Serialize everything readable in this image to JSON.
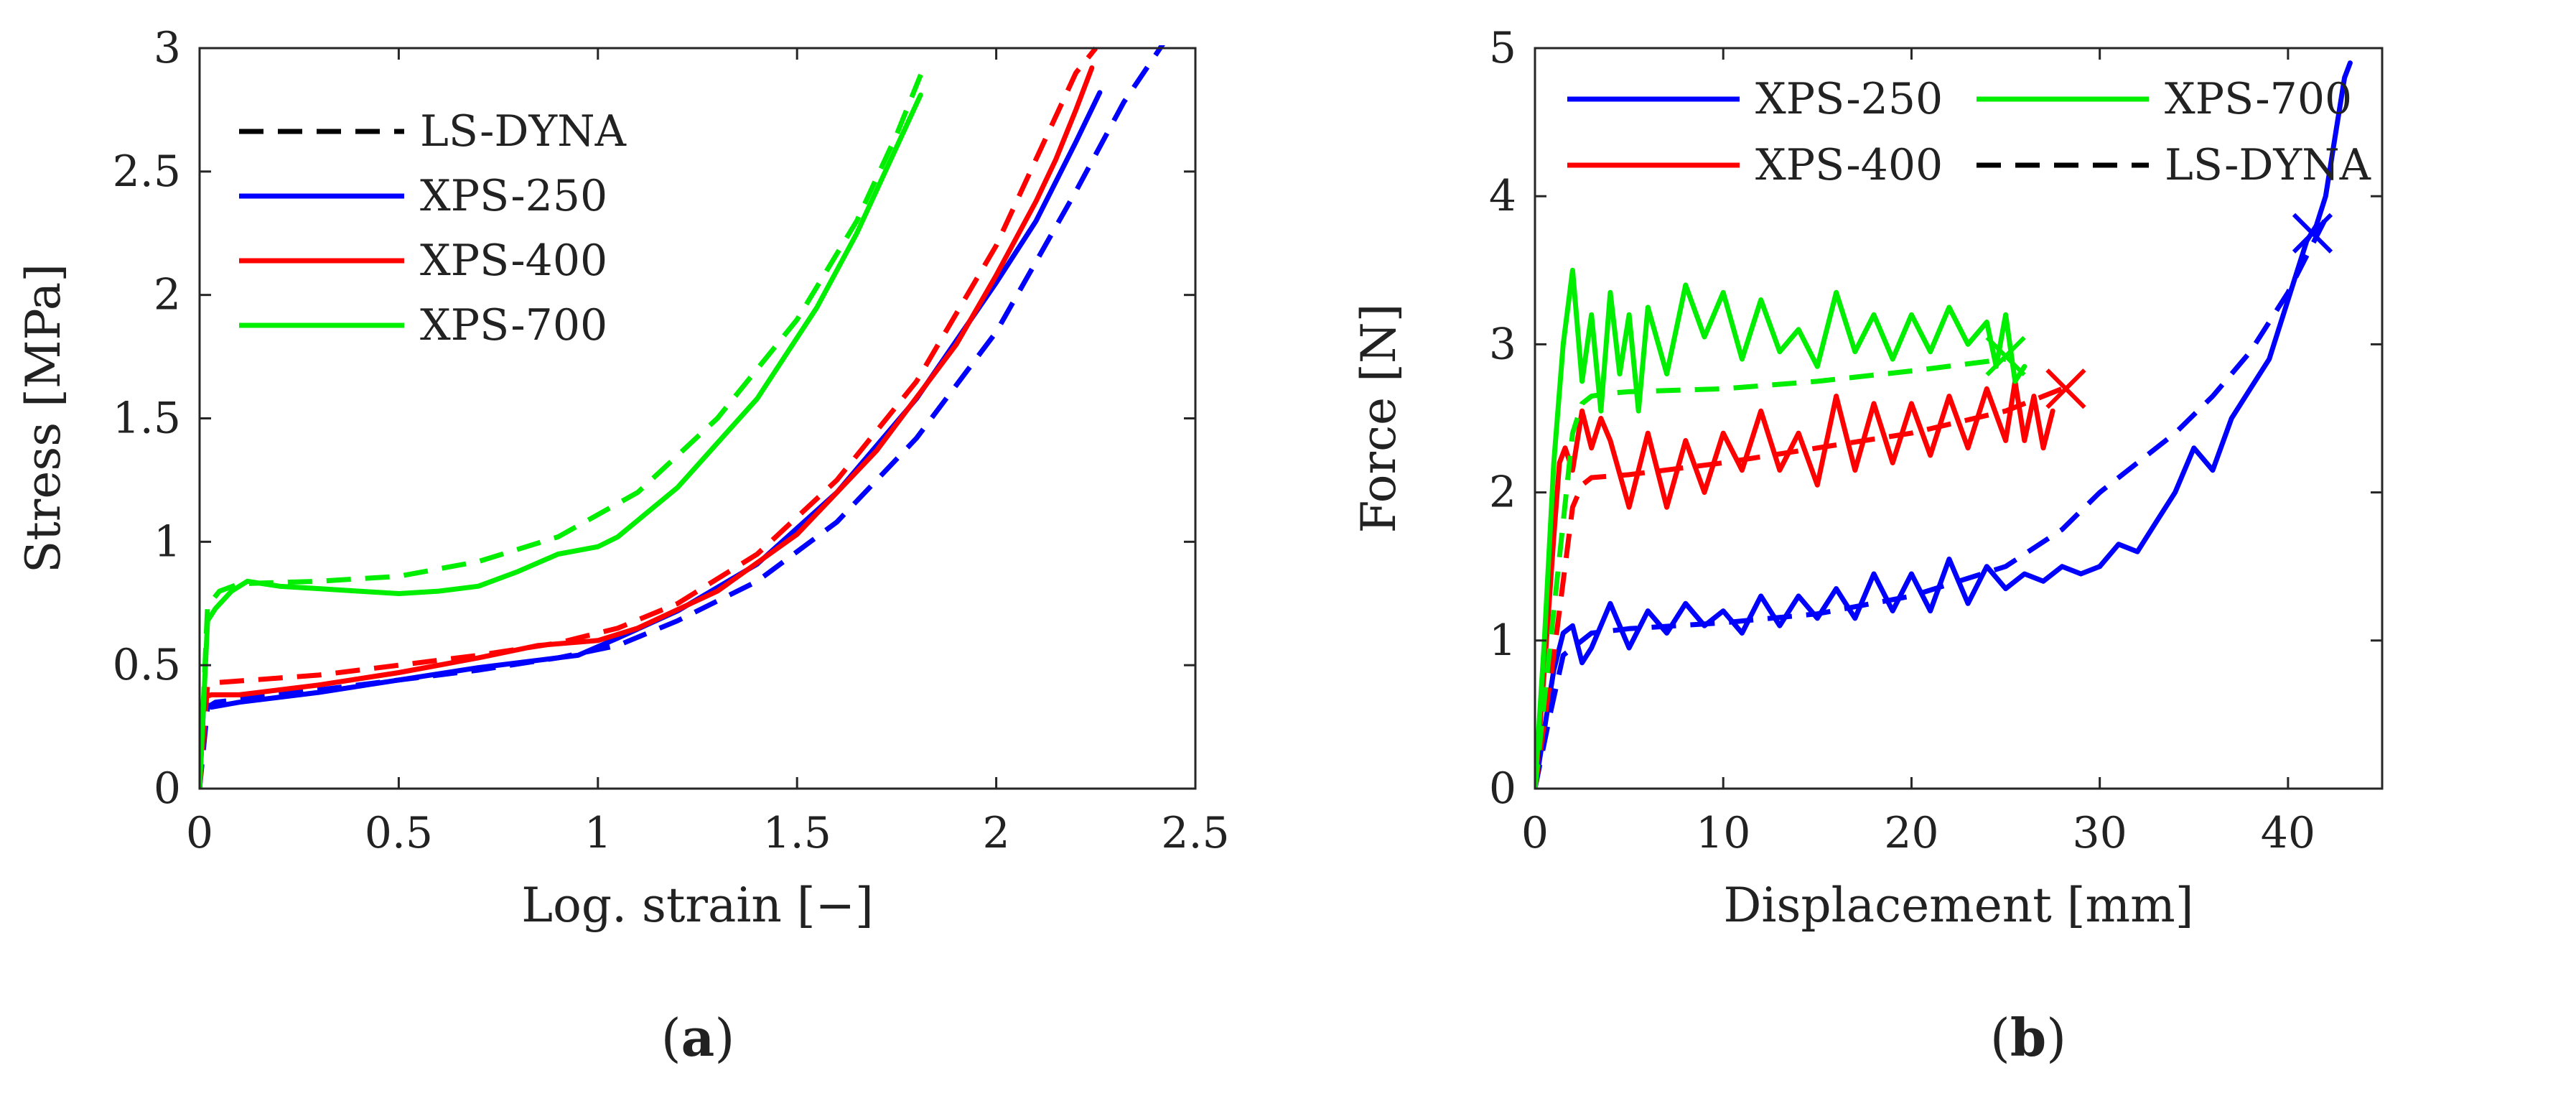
{
  "chart_data": [
    {
      "type": "line",
      "panel_label": "a",
      "xlabel": "Log. strain [−]",
      "ylabel": "Stress [MPa]",
      "xlim": [
        0,
        2.5
      ],
      "ylim": [
        0,
        3
      ],
      "xticks": [
        "0",
        "0.5",
        "1",
        "1.5",
        "2",
        "2.5"
      ],
      "xtick_values": [
        0,
        0.5,
        1,
        1.5,
        2,
        2.5
      ],
      "yticks": [
        "0",
        "0.5",
        "1",
        "1.5",
        "2",
        "2.5",
        "3"
      ],
      "ytick_values": [
        0,
        0.5,
        1,
        1.5,
        2,
        2.5,
        3
      ],
      "grid": false,
      "legend_position": "top-left",
      "legend": [
        {
          "label": "LS-DYNA",
          "color": "#000000",
          "dashed": true
        },
        {
          "label": "XPS-250",
          "color": "#0000ff",
          "dashed": false
        },
        {
          "label": "XPS-400",
          "color": "#ff0000",
          "dashed": false
        },
        {
          "label": "XPS-700",
          "color": "#00ee00",
          "dashed": false
        }
      ],
      "series": [
        {
          "name": "XPS-250",
          "color": "#0000ff",
          "dashed": false,
          "x": [
            0,
            0.01,
            0.02,
            0.03,
            0.1,
            0.3,
            0.5,
            0.7,
            0.95,
            1.05,
            1.2,
            1.4,
            1.6,
            1.8,
            2.0,
            2.1,
            2.2,
            2.26
          ],
          "y": [
            0,
            0.33,
            0.34,
            0.33,
            0.35,
            0.39,
            0.44,
            0.49,
            0.54,
            0.61,
            0.72,
            0.91,
            1.2,
            1.58,
            2.05,
            2.3,
            2.62,
            2.82
          ]
        },
        {
          "name": "LS-DYNA (XPS-250)",
          "color": "#0000ff",
          "dashed": true,
          "x": [
            0,
            0.02,
            0.04,
            0.3,
            0.5,
            0.7,
            0.9,
            1.05,
            1.2,
            1.4,
            1.6,
            1.8,
            2.0,
            2.2,
            2.32,
            2.42
          ],
          "y": [
            0,
            0.33,
            0.35,
            0.4,
            0.44,
            0.48,
            0.53,
            0.58,
            0.68,
            0.84,
            1.08,
            1.42,
            1.85,
            2.42,
            2.78,
            3.02
          ]
        },
        {
          "name": "XPS-400",
          "color": "#ff0000",
          "dashed": false,
          "x": [
            0,
            0.01,
            0.03,
            0.1,
            0.3,
            0.5,
            0.7,
            0.85,
            1.0,
            1.1,
            1.3,
            1.5,
            1.7,
            1.9,
            2.0,
            2.1,
            2.15,
            2.2,
            2.24
          ],
          "y": [
            0,
            0.37,
            0.38,
            0.38,
            0.42,
            0.47,
            0.53,
            0.58,
            0.6,
            0.65,
            0.8,
            1.03,
            1.37,
            1.8,
            2.08,
            2.38,
            2.55,
            2.75,
            2.92
          ]
        },
        {
          "name": "LS-DYNA (XPS-400)",
          "color": "#ff0000",
          "dashed": true,
          "x": [
            0,
            0.02,
            0.05,
            0.3,
            0.5,
            0.7,
            0.9,
            1.05,
            1.2,
            1.4,
            1.6,
            1.8,
            2.0,
            2.1,
            2.2,
            2.25
          ],
          "y": [
            0,
            0.42,
            0.43,
            0.46,
            0.5,
            0.54,
            0.59,
            0.65,
            0.75,
            0.95,
            1.25,
            1.65,
            2.2,
            2.55,
            2.9,
            3.0
          ]
        },
        {
          "name": "XPS-700",
          "color": "#00ee00",
          "dashed": false,
          "x": [
            0,
            0.02,
            0.04,
            0.08,
            0.12,
            0.16,
            0.2,
            0.3,
            0.4,
            0.5,
            0.6,
            0.7,
            0.8,
            0.9,
            1.0,
            1.05,
            1.2,
            1.4,
            1.55,
            1.65,
            1.75,
            1.81
          ],
          "y": [
            0,
            0.68,
            0.73,
            0.8,
            0.84,
            0.83,
            0.82,
            0.81,
            0.8,
            0.79,
            0.8,
            0.82,
            0.88,
            0.95,
            0.98,
            1.02,
            1.22,
            1.58,
            1.95,
            2.25,
            2.6,
            2.81
          ]
        },
        {
          "name": "LS-DYNA (XPS-700)",
          "color": "#00ee00",
          "dashed": true,
          "x": [
            0,
            0.02,
            0.05,
            0.1,
            0.3,
            0.5,
            0.7,
            0.9,
            1.1,
            1.3,
            1.5,
            1.65,
            1.75,
            1.82
          ],
          "y": [
            0,
            0.74,
            0.8,
            0.83,
            0.84,
            0.86,
            0.92,
            1.02,
            1.2,
            1.5,
            1.9,
            2.3,
            2.65,
            2.93
          ]
        }
      ]
    },
    {
      "type": "line",
      "panel_label": "b",
      "xlabel": "Displacement [mm]",
      "ylabel": "Force [N]",
      "xlim": [
        0,
        45
      ],
      "ylim": [
        0,
        5
      ],
      "xticks": [
        "0",
        "10",
        "20",
        "30",
        "40"
      ],
      "xtick_values": [
        0,
        10,
        20,
        30,
        40
      ],
      "yticks": [
        "0",
        "1",
        "2",
        "3",
        "4",
        "5"
      ],
      "ytick_values": [
        0,
        1,
        2,
        3,
        4,
        5
      ],
      "grid": false,
      "legend_position": "top (two columns)",
      "legend": [
        {
          "label": "XPS-250",
          "color": "#0000ff",
          "dashed": false
        },
        {
          "label": "XPS-700",
          "color": "#00ee00",
          "dashed": false
        },
        {
          "label": "XPS-400",
          "color": "#ff0000",
          "dashed": false
        },
        {
          "label": "LS-DYNA",
          "color": "#000000",
          "dashed": true
        }
      ],
      "markers": [
        {
          "series": "XPS-250",
          "x": 41.3,
          "y": 3.75,
          "color": "#0000ff",
          "symbol": "x"
        },
        {
          "series": "XPS-400",
          "x": 28.2,
          "y": 2.7,
          "color": "#ff0000",
          "symbol": "x"
        },
        {
          "series": "XPS-700",
          "x": 25.0,
          "y": 2.92,
          "color": "#00ee00",
          "symbol": "x"
        }
      ],
      "series": [
        {
          "name": "XPS-250",
          "color": "#0000ff",
          "dashed": false,
          "x": [
            0,
            0.5,
            1.0,
            1.5,
            2.0,
            2.5,
            3.0,
            4.0,
            5.0,
            6.0,
            7.0,
            8.0,
            9.0,
            10.0,
            11.0,
            12.0,
            13.0,
            14.0,
            15.0,
            16.0,
            17.0,
            18.0,
            19.0,
            20.0,
            21.0,
            22.0,
            23.0,
            24.0,
            25.0,
            26.0,
            27.0,
            28.0,
            29.0,
            30.0,
            31.0,
            32.0,
            33.0,
            34.0,
            35.0,
            36.0,
            37.0,
            38.0,
            39.0,
            40.0,
            41.0,
            41.5,
            42.0,
            42.5,
            43.0,
            43.3
          ],
          "y": [
            0,
            0.4,
            0.8,
            1.05,
            1.1,
            0.85,
            0.95,
            1.25,
            0.95,
            1.2,
            1.05,
            1.25,
            1.1,
            1.2,
            1.05,
            1.3,
            1.1,
            1.3,
            1.15,
            1.35,
            1.15,
            1.45,
            1.2,
            1.45,
            1.2,
            1.55,
            1.25,
            1.5,
            1.35,
            1.45,
            1.4,
            1.5,
            1.45,
            1.5,
            1.65,
            1.6,
            1.8,
            2.0,
            2.3,
            2.15,
            2.5,
            2.7,
            2.9,
            3.3,
            3.7,
            3.8,
            4.0,
            4.4,
            4.8,
            4.9
          ]
        },
        {
          "name": "LS-DYNA (XPS-250)",
          "color": "#0000ff",
          "dashed": true,
          "x": [
            0,
            0.8,
            1.5,
            3.0,
            5.0,
            10.0,
            15.0,
            20.0,
            25.0,
            28.0,
            30.0,
            32.0,
            34.0,
            36.0,
            38.0,
            40.0,
            41.0,
            42.0
          ],
          "y": [
            0,
            0.5,
            0.9,
            1.05,
            1.08,
            1.12,
            1.18,
            1.3,
            1.5,
            1.75,
            2.0,
            2.2,
            2.4,
            2.65,
            2.95,
            3.35,
            3.6,
            3.85
          ]
        },
        {
          "name": "XPS-400",
          "color": "#ff0000",
          "dashed": false,
          "x": [
            0,
            0.5,
            1.0,
            1.3,
            1.6,
            2.0,
            2.5,
            3.0,
            3.5,
            4.0,
            5.0,
            6.0,
            7.0,
            8.0,
            9.0,
            10.0,
            11.0,
            12.0,
            13.0,
            14.0,
            15.0,
            16.0,
            17.0,
            18.0,
            19.0,
            20.0,
            21.0,
            22.0,
            23.0,
            24.0,
            25.0,
            25.5,
            26.0,
            26.5,
            27.0,
            27.5
          ],
          "y": [
            0,
            0.8,
            1.7,
            2.2,
            2.3,
            2.15,
            2.55,
            2.3,
            2.5,
            2.35,
            1.9,
            2.4,
            1.9,
            2.35,
            2.0,
            2.4,
            2.15,
            2.55,
            2.15,
            2.4,
            2.05,
            2.65,
            2.15,
            2.6,
            2.2,
            2.6,
            2.25,
            2.65,
            2.3,
            2.7,
            2.35,
            2.75,
            2.35,
            2.65,
            2.3,
            2.55
          ]
        },
        {
          "name": "LS-DYNA (XPS-400)",
          "color": "#ff0000",
          "dashed": true,
          "x": [
            0,
            1.0,
            2.0,
            2.5,
            3.0,
            5.0,
            10.0,
            15.0,
            20.0,
            25.0,
            28.0
          ],
          "y": [
            0,
            0.9,
            1.9,
            2.05,
            2.1,
            2.12,
            2.2,
            2.3,
            2.4,
            2.55,
            2.7
          ]
        },
        {
          "name": "XPS-700",
          "color": "#00ee00",
          "dashed": false,
          "x": [
            0,
            0.5,
            1.0,
            1.5,
            2.0,
            2.5,
            3.0,
            3.5,
            4.0,
            4.5,
            5.0,
            5.5,
            6.0,
            7.0,
            8.0,
            9.0,
            10.0,
            11.0,
            12.0,
            13.0,
            14.0,
            15.0,
            16.0,
            17.0,
            18.0,
            19.0,
            20.0,
            21.0,
            22.0,
            23.0,
            24.0,
            24.5,
            25.0,
            25.5,
            26.0
          ],
          "y": [
            0,
            1.0,
            2.2,
            3.0,
            3.5,
            2.75,
            3.2,
            2.55,
            3.35,
            2.8,
            3.2,
            2.55,
            3.25,
            2.8,
            3.4,
            3.05,
            3.35,
            2.9,
            3.3,
            2.95,
            3.1,
            2.85,
            3.35,
            2.95,
            3.2,
            2.9,
            3.2,
            2.95,
            3.25,
            3.0,
            3.15,
            2.85,
            3.2,
            2.75,
            2.85
          ]
        },
        {
          "name": "LS-DYNA (XPS-700)",
          "color": "#00ee00",
          "dashed": true,
          "x": [
            0,
            1.0,
            2.0,
            2.5,
            3.0,
            4.0,
            5.0,
            10.0,
            15.0,
            20.0,
            25.0
          ],
          "y": [
            0,
            1.2,
            2.4,
            2.6,
            2.65,
            2.67,
            2.68,
            2.7,
            2.75,
            2.82,
            2.9
          ]
        }
      ]
    }
  ]
}
